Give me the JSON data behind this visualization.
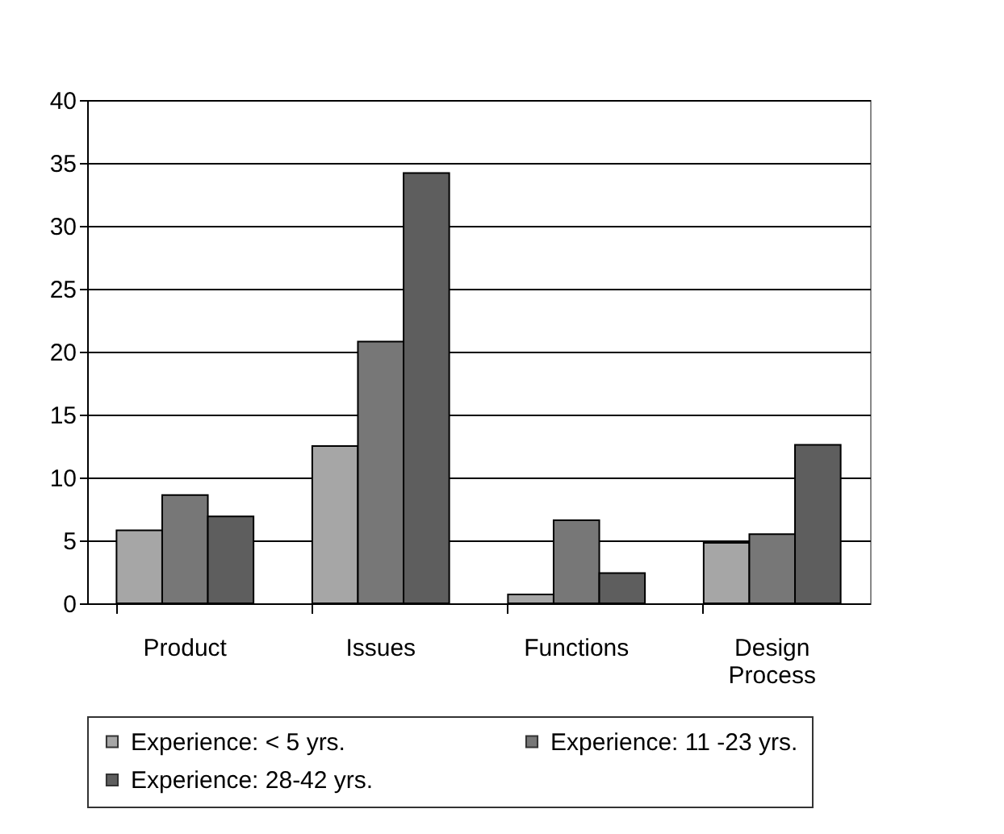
{
  "chart_data": {
    "type": "bar",
    "categories": [
      "Product",
      "Issues",
      "Functions",
      "Design Process"
    ],
    "series": [
      {
        "name": "Experience: < 5 yrs.",
        "color": "#a6a6a6",
        "values": [
          5.8,
          12.5,
          0.7,
          4.8
        ]
      },
      {
        "name": "Experience: 11 -23 yrs.",
        "color": "#777777",
        "values": [
          8.6,
          20.8,
          6.6,
          5.5
        ]
      },
      {
        "name": "Experience: 28-42 yrs.",
        "color": "#5e5e5e",
        "values": [
          6.9,
          34.2,
          2.4,
          12.6
        ]
      }
    ],
    "ylim": [
      0,
      40
    ],
    "yticks": [
      0,
      5,
      10,
      15,
      20,
      25,
      30,
      35,
      40
    ],
    "grid": "y",
    "legend": "bottom"
  }
}
